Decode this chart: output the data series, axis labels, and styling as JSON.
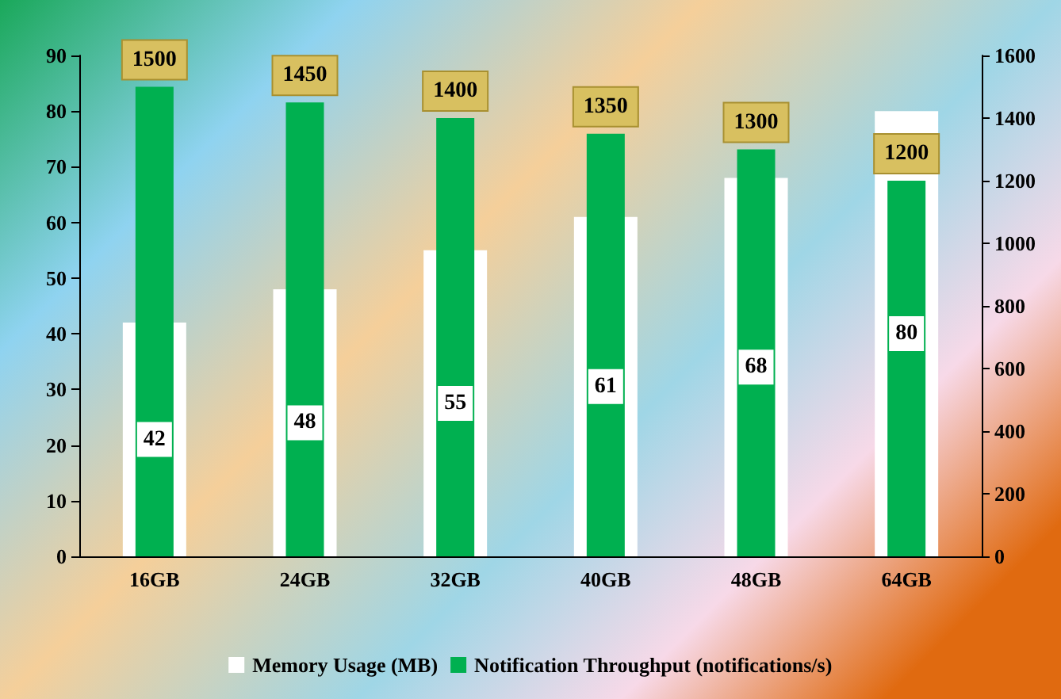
{
  "chart_data": {
    "type": "bar",
    "categories": [
      "16GB",
      "24GB",
      "32GB",
      "40GB",
      "48GB",
      "64GB"
    ],
    "series": [
      {
        "name": "Memory Usage (MB)",
        "color": "#ffffff",
        "values": [
          42,
          48,
          55,
          61,
          68,
          80
        ]
      },
      {
        "name": "Notification Throughput (notifications/s)",
        "color": "#00b050",
        "values": [
          1500,
          1450,
          1400,
          1350,
          1300,
          1200
        ],
        "axis": "y2"
      }
    ],
    "ylim": [
      0,
      90
    ],
    "yticks": [
      0,
      10,
      20,
      30,
      40,
      50,
      60,
      70,
      80,
      90
    ],
    "y2lim": [
      0,
      1600
    ],
    "y2ticks": [
      0,
      200,
      400,
      600,
      800,
      1000,
      1200,
      1400,
      1600
    ],
    "data_labels": true,
    "legend": "bottom",
    "grid": false
  }
}
